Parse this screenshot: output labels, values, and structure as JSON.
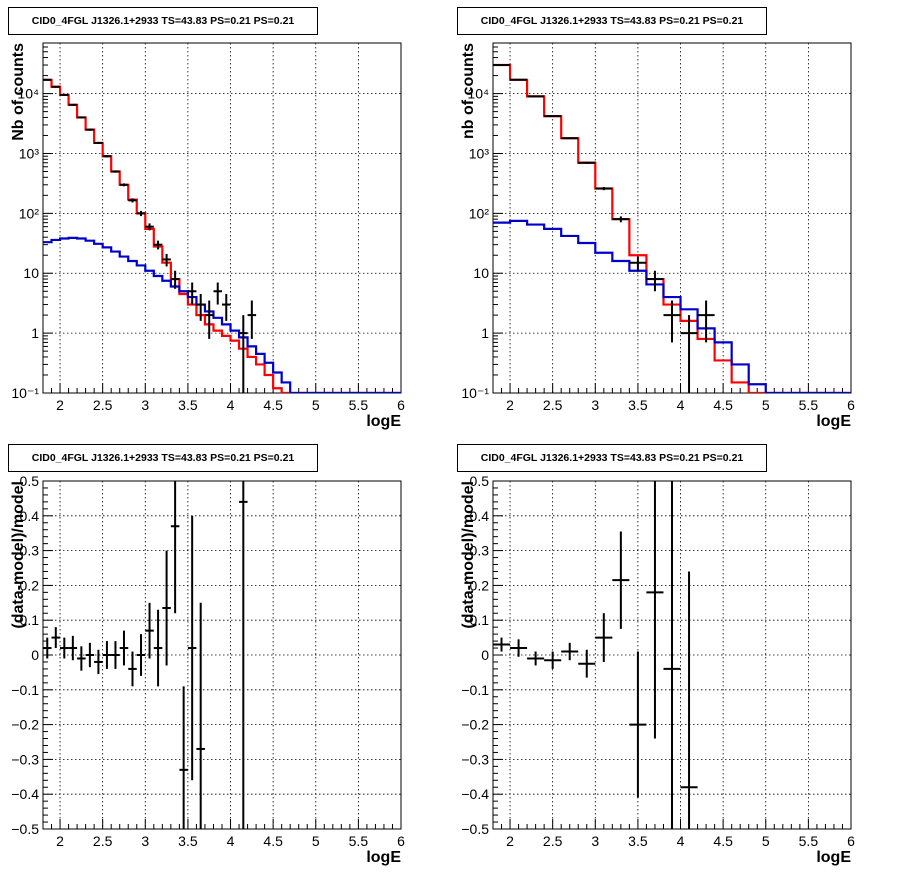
{
  "chart_data": [
    {
      "type": "line",
      "title": "CID0_4FGL J1326.1+2933 TS=43.83 PS=0.21 PS=0.21",
      "xlabel": "logE",
      "ylabel": "Nb of counts",
      "xlim": [
        1.8,
        6.0
      ],
      "ylim": [
        0.1,
        70000
      ],
      "yscale": "log",
      "grid": true,
      "x_ticks": [
        "2",
        "2.5",
        "3",
        "3.5",
        "4",
        "4.5",
        "5",
        "5.5",
        "6"
      ],
      "y_ticks": [
        "10⁻¹",
        "1",
        "10",
        "10²",
        "10³",
        "10⁴"
      ],
      "series": [
        {
          "kind": "step",
          "color": "#ff0000",
          "edges": [
            1.8,
            1.9,
            2.0,
            2.1,
            2.2,
            2.3,
            2.4,
            2.5,
            2.6,
            2.7,
            2.8,
            2.9,
            3.0,
            3.1,
            3.2,
            3.3,
            3.4,
            3.5,
            3.6,
            3.7,
            3.8,
            3.9,
            4.0,
            4.1,
            4.2,
            4.3,
            4.4,
            4.5,
            4.6,
            4.7,
            4.8,
            4.9,
            5.0,
            5.1,
            5.2,
            5.3,
            5.4,
            5.5,
            5.6,
            5.7,
            5.8,
            5.9,
            6.0
          ],
          "values": [
            17000,
            13000,
            9500,
            6500,
            4000,
            2500,
            1500,
            900,
            500,
            300,
            170,
            100,
            55,
            28,
            15,
            8,
            4.5,
            3,
            2,
            1.4,
            1.1,
            0.9,
            0.75,
            0.55,
            0.4,
            0.3,
            0.2,
            0.12,
            0.1,
            0.1,
            0.1,
            0.1,
            0.1,
            0.1,
            0.1,
            0.1,
            0.1,
            0.1,
            0.1,
            0.1,
            0.1,
            0.1
          ]
        },
        {
          "kind": "step",
          "color": "#0000cc",
          "edges": [
            1.8,
            1.9,
            2.0,
            2.1,
            2.2,
            2.3,
            2.4,
            2.5,
            2.6,
            2.7,
            2.8,
            2.9,
            3.0,
            3.1,
            3.2,
            3.3,
            3.4,
            3.5,
            3.6,
            3.7,
            3.8,
            3.9,
            4.0,
            4.1,
            4.2,
            4.3,
            4.4,
            4.5,
            4.6,
            4.7,
            4.8,
            4.9,
            5.0,
            5.1,
            5.2,
            5.3,
            5.4,
            5.5,
            5.6,
            5.7,
            5.8,
            5.9,
            6.0
          ],
          "values": [
            33,
            36,
            38,
            39,
            38,
            35,
            31,
            27,
            23,
            19,
            16,
            13.5,
            11,
            9,
            7.5,
            6,
            5,
            4,
            3,
            2.3,
            1.8,
            1.4,
            1.1,
            0.85,
            0.6,
            0.45,
            0.32,
            0.22,
            0.15,
            0.1,
            0.1,
            0.1,
            0.1,
            0.1,
            0.1,
            0.1,
            0.1,
            0.1,
            0.1,
            0.1,
            0.1,
            0.1
          ]
        },
        {
          "kind": "points",
          "color": "#000000",
          "points": [
            {
              "x": 1.85,
              "y": 17000,
              "ylo": 16500,
              "yhi": 17500
            },
            {
              "x": 1.95,
              "y": 13000,
              "ylo": 12600,
              "yhi": 13400
            },
            {
              "x": 2.05,
              "y": 9500,
              "ylo": 9200,
              "yhi": 9800
            },
            {
              "x": 2.15,
              "y": 6500,
              "ylo": 6300,
              "yhi": 6700
            },
            {
              "x": 2.25,
              "y": 4000,
              "ylo": 3850,
              "yhi": 4150
            },
            {
              "x": 2.35,
              "y": 2500,
              "ylo": 2400,
              "yhi": 2600
            },
            {
              "x": 2.45,
              "y": 1500,
              "ylo": 1440,
              "yhi": 1560
            },
            {
              "x": 2.55,
              "y": 900,
              "ylo": 860,
              "yhi": 940
            },
            {
              "x": 2.65,
              "y": 500,
              "ylo": 478,
              "yhi": 522
            },
            {
              "x": 2.75,
              "y": 300,
              "ylo": 283,
              "yhi": 317
            },
            {
              "x": 2.85,
              "y": 165,
              "ylo": 152,
              "yhi": 178
            },
            {
              "x": 2.95,
              "y": 100,
              "ylo": 90,
              "yhi": 110
            },
            {
              "x": 3.05,
              "y": 60,
              "ylo": 52,
              "yhi": 68
            },
            {
              "x": 3.15,
              "y": 30,
              "ylo": 25,
              "yhi": 35
            },
            {
              "x": 3.25,
              "y": 17,
              "ylo": 13,
              "yhi": 21
            },
            {
              "x": 3.35,
              "y": 8,
              "ylo": 5.5,
              "yhi": 11
            },
            {
              "x": 3.55,
              "y": 5,
              "ylo": 3,
              "yhi": 7
            },
            {
              "x": 3.65,
              "y": 3,
              "ylo": 1.6,
              "yhi": 4.5
            },
            {
              "x": 3.75,
              "y": 2,
              "ylo": 0.8,
              "yhi": 3.5
            },
            {
              "x": 3.85,
              "y": 5,
              "ylo": 3,
              "yhi": 7
            },
            {
              "x": 3.95,
              "y": 3,
              "ylo": 1.6,
              "yhi": 4.5
            },
            {
              "x": 4.15,
              "y": 1,
              "ylo": 0.1,
              "yhi": 2
            },
            {
              "x": 4.25,
              "y": 2,
              "ylo": 0.8,
              "yhi": 3.5
            }
          ]
        }
      ]
    },
    {
      "type": "line",
      "title": "CID0_4FGL J1326.1+2933 TS=43.83 PS=0.21 PS=0.21",
      "xlabel": "logE",
      "ylabel": "nb of counts",
      "xlim": [
        1.8,
        6.0
      ],
      "ylim": [
        0.1,
        70000
      ],
      "yscale": "log",
      "grid": true,
      "x_ticks": [
        "2",
        "2.5",
        "3",
        "3.5",
        "4",
        "4.5",
        "5",
        "5.5",
        "6"
      ],
      "y_ticks": [
        "10⁻¹",
        "1",
        "10",
        "10²",
        "10³",
        "10⁴"
      ],
      "series": [
        {
          "kind": "step",
          "color": "#ff0000",
          "edges": [
            1.8,
            2.0,
            2.2,
            2.4,
            2.6,
            2.8,
            3.0,
            3.2,
            3.4,
            3.6,
            3.8,
            4.0,
            4.2,
            4.4,
            4.6,
            4.8,
            5.0,
            5.2,
            5.4,
            5.6,
            5.8,
            6.0
          ],
          "values": [
            30000,
            17000,
            9000,
            4200,
            1800,
            700,
            260,
            80,
            20,
            8,
            3,
            1.6,
            0.8,
            0.35,
            0.15,
            0.1,
            0.1,
            0.1,
            0.1,
            0.1,
            0.1
          ]
        },
        {
          "kind": "step",
          "color": "#0000cc",
          "edges": [
            1.8,
            2.0,
            2.2,
            2.4,
            2.6,
            2.8,
            3.0,
            3.2,
            3.4,
            3.6,
            3.8,
            4.0,
            4.2,
            4.4,
            4.6,
            4.8,
            5.0,
            5.2,
            5.4,
            5.6,
            5.8,
            6.0
          ],
          "values": [
            70,
            75,
            65,
            55,
            42,
            32,
            22,
            16,
            11,
            6.5,
            4,
            2.5,
            1.2,
            0.7,
            0.3,
            0.14,
            0.1,
            0.1,
            0.1,
            0.1,
            0.1
          ]
        },
        {
          "kind": "points",
          "color": "#000000",
          "points": [
            {
              "x": 1.9,
              "y": 30000,
              "ylo": 29600,
              "yhi": 30400
            },
            {
              "x": 2.1,
              "y": 17000,
              "ylo": 16700,
              "yhi": 17300
            },
            {
              "x": 2.3,
              "y": 9000,
              "ylo": 8800,
              "yhi": 9200
            },
            {
              "x": 2.5,
              "y": 4200,
              "ylo": 4080,
              "yhi": 4320
            },
            {
              "x": 2.7,
              "y": 1800,
              "ylo": 1740,
              "yhi": 1860
            },
            {
              "x": 2.9,
              "y": 700,
              "ylo": 670,
              "yhi": 730
            },
            {
              "x": 3.1,
              "y": 260,
              "ylo": 244,
              "yhi": 276
            },
            {
              "x": 3.3,
              "y": 80,
              "ylo": 71,
              "yhi": 89
            },
            {
              "x": 3.5,
              "y": 15,
              "ylo": 11,
              "yhi": 19
            },
            {
              "x": 3.7,
              "y": 8,
              "ylo": 5,
              "yhi": 11
            },
            {
              "x": 3.9,
              "y": 2,
              "ylo": 0.7,
              "yhi": 3.5
            },
            {
              "x": 4.1,
              "y": 1,
              "ylo": 0.1,
              "yhi": 2
            },
            {
              "x": 4.3,
              "y": 2,
              "ylo": 0.7,
              "yhi": 3.5
            }
          ]
        }
      ]
    },
    {
      "type": "scatter",
      "title": "CID0_4FGL J1326.1+2933 TS=43.83 PS=0.21 PS=0.21",
      "xlabel": "logE",
      "ylabel": "(data-model)/model",
      "xlim": [
        1.8,
        6.0
      ],
      "ylim": [
        -0.5,
        0.5
      ],
      "grid": true,
      "x_ticks": [
        "2",
        "2.5",
        "3",
        "3.5",
        "4",
        "4.5",
        "5",
        "5.5",
        "6"
      ],
      "y_ticks": [
        "−0.5",
        "−0.4",
        "−0.3",
        "−0.2",
        "−0.1",
        "0",
        "0.1",
        "0.2",
        "0.3",
        "0.4",
        "0.5"
      ],
      "series": [
        {
          "kind": "points",
          "color": "#000000",
          "points": [
            {
              "x": 1.85,
              "y": 0.02,
              "ylo": -0.01,
              "yhi": 0.05
            },
            {
              "x": 1.95,
              "y": 0.05,
              "ylo": 0.02,
              "yhi": 0.08
            },
            {
              "x": 2.05,
              "y": 0.02,
              "ylo": -0.01,
              "yhi": 0.05
            },
            {
              "x": 2.15,
              "y": 0.02,
              "ylo": -0.015,
              "yhi": 0.055
            },
            {
              "x": 2.25,
              "y": -0.01,
              "ylo": -0.045,
              "yhi": 0.025
            },
            {
              "x": 2.35,
              "y": 0.0,
              "ylo": -0.035,
              "yhi": 0.035
            },
            {
              "x": 2.45,
              "y": -0.02,
              "ylo": -0.055,
              "yhi": 0.015
            },
            {
              "x": 2.55,
              "y": 0.0,
              "ylo": -0.04,
              "yhi": 0.04
            },
            {
              "x": 2.65,
              "y": 0.0,
              "ylo": -0.04,
              "yhi": 0.04
            },
            {
              "x": 2.75,
              "y": 0.02,
              "ylo": -0.03,
              "yhi": 0.07
            },
            {
              "x": 2.85,
              "y": -0.04,
              "ylo": -0.09,
              "yhi": 0.01
            },
            {
              "x": 2.95,
              "y": 0.0,
              "ylo": -0.06,
              "yhi": 0.06
            },
            {
              "x": 3.05,
              "y": 0.07,
              "ylo": -0.01,
              "yhi": 0.15
            },
            {
              "x": 3.15,
              "y": 0.02,
              "ylo": -0.09,
              "yhi": 0.13
            },
            {
              "x": 3.25,
              "y": 0.135,
              "ylo": -0.03,
              "yhi": 0.3
            },
            {
              "x": 3.35,
              "y": 0.37,
              "ylo": 0.12,
              "yhi": 0.5
            },
            {
              "x": 3.45,
              "y": -0.33,
              "ylo": -0.5,
              "yhi": -0.09
            },
            {
              "x": 3.55,
              "y": 0.02,
              "ylo": -0.36,
              "yhi": 0.4
            },
            {
              "x": 3.65,
              "y": -0.27,
              "ylo": -0.5,
              "yhi": 0.15
            },
            {
              "x": 4.15,
              "y": 0.44,
              "ylo": -0.5,
              "yhi": 0.5
            }
          ]
        }
      ]
    },
    {
      "type": "scatter",
      "title": "CID0_4FGL J1326.1+2933 TS=43.83 PS=0.21 PS=0.21",
      "xlabel": "logE",
      "ylabel": "(data-model)/model",
      "xlim": [
        1.8,
        6.0
      ],
      "ylim": [
        -0.5,
        0.5
      ],
      "grid": true,
      "x_ticks": [
        "2",
        "2.5",
        "3",
        "3.5",
        "4",
        "4.5",
        "5",
        "5.5",
        "6"
      ],
      "y_ticks": [
        "−0.5",
        "−0.4",
        "−0.3",
        "−0.2",
        "−0.1",
        "0",
        "0.1",
        "0.2",
        "0.3",
        "0.4",
        "0.5"
      ],
      "series": [
        {
          "kind": "points",
          "color": "#000000",
          "points": [
            {
              "x": 1.9,
              "y": 0.03,
              "ylo": 0.01,
              "yhi": 0.05
            },
            {
              "x": 2.1,
              "y": 0.02,
              "ylo": -0.005,
              "yhi": 0.045
            },
            {
              "x": 2.3,
              "y": -0.01,
              "ylo": -0.03,
              "yhi": 0.01
            },
            {
              "x": 2.5,
              "y": -0.015,
              "ylo": -0.04,
              "yhi": 0.01
            },
            {
              "x": 2.7,
              "y": 0.01,
              "ylo": -0.015,
              "yhi": 0.035
            },
            {
              "x": 2.9,
              "y": -0.025,
              "ylo": -0.065,
              "yhi": 0.015
            },
            {
              "x": 3.1,
              "y": 0.05,
              "ylo": -0.02,
              "yhi": 0.12
            },
            {
              "x": 3.3,
              "y": 0.215,
              "ylo": 0.075,
              "yhi": 0.355
            },
            {
              "x": 3.5,
              "y": -0.2,
              "ylo": -0.41,
              "yhi": 0.01
            },
            {
              "x": 3.7,
              "y": 0.18,
              "ylo": -0.24,
              "yhi": 0.5
            },
            {
              "x": 3.9,
              "y": -0.04,
              "ylo": -0.5,
              "yhi": 0.5
            },
            {
              "x": 4.1,
              "y": -0.38,
              "ylo": -0.5,
              "yhi": 0.24
            }
          ]
        }
      ]
    }
  ]
}
